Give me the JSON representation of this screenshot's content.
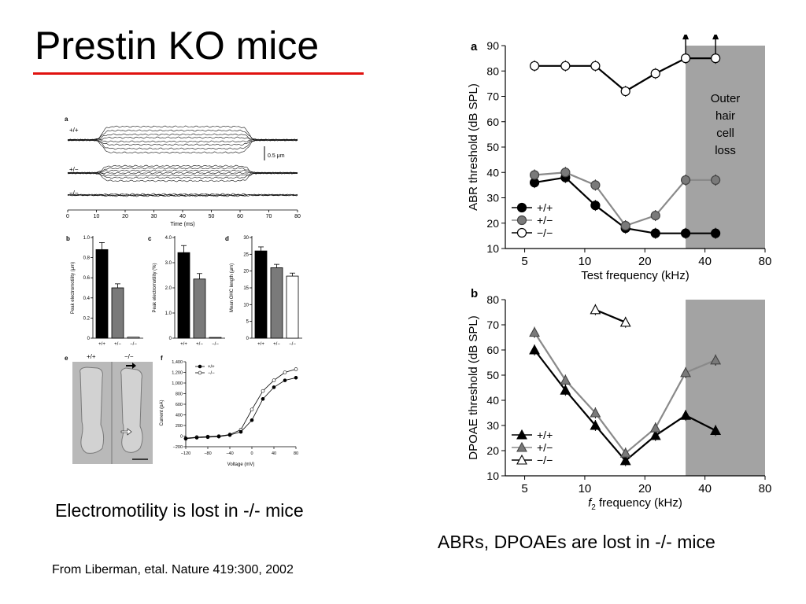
{
  "slide": {
    "title": "Prestin KO mice",
    "caption_left": "Electromotility is lost in -/- mice",
    "caption_right": "ABRs, DPOAEs are lost in -/- mice",
    "credit": "From Liberman, etal. Nature 419:300, 2002"
  },
  "colors": {
    "title_rule": "#e0120f",
    "loss_band": "#a3a3a3",
    "wt": "#000000",
    "het": "#7a7a7a",
    "ko": "#ffffff"
  },
  "left_figure": {
    "panel_a": {
      "label": "a",
      "traces": [
        "+/+",
        "+/−",
        "−/−"
      ],
      "scale_bar": "0.5 μm",
      "xlabel": "Time (ms)",
      "x_ticks": [
        "0",
        "10",
        "20",
        "30",
        "40",
        "50",
        "60",
        "70",
        "80"
      ]
    },
    "panel_b": {
      "label": "b",
      "ylabel": "Peak electromotility (μm)",
      "y_ticks": [
        "0",
        "0.2",
        "0.4",
        "0.6",
        "0.8",
        "1.0"
      ],
      "ylim": [
        0,
        1.0
      ],
      "categories": [
        "+/+",
        "+/−",
        "−/−"
      ],
      "values": [
        0.88,
        0.5,
        0.01
      ]
    },
    "panel_c": {
      "label": "c",
      "ylabel": "Peak electromotility (%)",
      "y_ticks": [
        "0",
        "1.0",
        "2.0",
        "3.0",
        "4.0"
      ],
      "ylim": [
        0,
        4.0
      ],
      "categories": [
        "+/+",
        "+/−",
        "−/−"
      ],
      "values": [
        3.4,
        2.35,
        0.03
      ]
    },
    "panel_d": {
      "label": "d",
      "ylabel": "Mean OHC length (μm)",
      "y_ticks": [
        "0",
        "5",
        "10",
        "15",
        "20",
        "25",
        "30"
      ],
      "ylim": [
        0,
        30
      ],
      "categories": [
        "+/+",
        "+/−",
        "−/−"
      ],
      "values": [
        26,
        21,
        18.5
      ]
    },
    "panel_e": {
      "label": "e",
      "genotypes": [
        "+/+",
        "−/−"
      ]
    },
    "panel_f": {
      "label": "f",
      "ylabel": "Current (pA)",
      "xlabel": "Voltage (mV)",
      "x_ticks": [
        "−120",
        "−80",
        "−40",
        "0",
        "40",
        "80"
      ],
      "y_ticks": [
        "−200",
        "0",
        "200",
        "400",
        "600",
        "800",
        "1,000",
        "1,200",
        "1,400"
      ],
      "legend": [
        "+/+",
        "−/−"
      ]
    }
  },
  "chart_data": [
    {
      "type": "line",
      "panel": "a",
      "ylabel": "ABR threshold (dB SPL)",
      "xlabel": "Test frequency (kHz)",
      "x_scale": "log",
      "xlim": [
        4,
        80
      ],
      "ylim": [
        10,
        90
      ],
      "x_ticks": [
        "5",
        "10",
        "20",
        "40",
        "80"
      ],
      "y_ticks": [
        "10",
        "20",
        "30",
        "40",
        "50",
        "60",
        "70",
        "80",
        "90"
      ],
      "annotation": [
        "Outer",
        "hair",
        "cell",
        "loss"
      ],
      "shaded_region": [
        32,
        80
      ],
      "legend": "bottom-left",
      "series": [
        {
          "name": "+/+",
          "x": [
            5.6,
            8,
            11.3,
            16,
            22.6,
            32,
            45.2
          ],
          "y": [
            36,
            38,
            27,
            18,
            16,
            16,
            16
          ]
        },
        {
          "name": "+/−",
          "x": [
            5.6,
            8,
            11.3,
            16,
            22.6,
            32,
            45.2
          ],
          "y": [
            39,
            40,
            35,
            19,
            23,
            37,
            37
          ]
        },
        {
          "name": "−/−",
          "x": [
            5.6,
            8,
            11.3,
            16,
            22.6,
            32,
            45.2
          ],
          "y": [
            82,
            82,
            82,
            72,
            79,
            85,
            85
          ]
        }
      ]
    },
    {
      "type": "line",
      "panel": "b",
      "ylabel": "DPOAE threshold (dB SPL)",
      "xlabel_prefix": "f",
      "xlabel_sub": "2",
      "xlabel_suffix": " frequency (kHz)",
      "x_scale": "log",
      "xlim": [
        4,
        80
      ],
      "ylim": [
        10,
        80
      ],
      "x_ticks": [
        "5",
        "10",
        "20",
        "40",
        "80"
      ],
      "y_ticks": [
        "10",
        "20",
        "30",
        "40",
        "50",
        "60",
        "70",
        "80"
      ],
      "shaded_region": [
        32,
        80
      ],
      "legend": "bottom-left",
      "series": [
        {
          "name": "+/+",
          "x": [
            5.6,
            8,
            11.3,
            16,
            22.6,
            32,
            45.2
          ],
          "y": [
            60,
            44,
            30,
            16,
            26,
            34,
            28
          ]
        },
        {
          "name": "+/−",
          "x": [
            5.6,
            8,
            11.3,
            16,
            22.6,
            32,
            45.2
          ],
          "y": [
            67,
            48,
            35,
            19,
            29,
            51,
            56
          ]
        },
        {
          "name": "−/−",
          "x": [
            11.3,
            16
          ],
          "y": [
            76,
            71
          ]
        }
      ]
    }
  ]
}
